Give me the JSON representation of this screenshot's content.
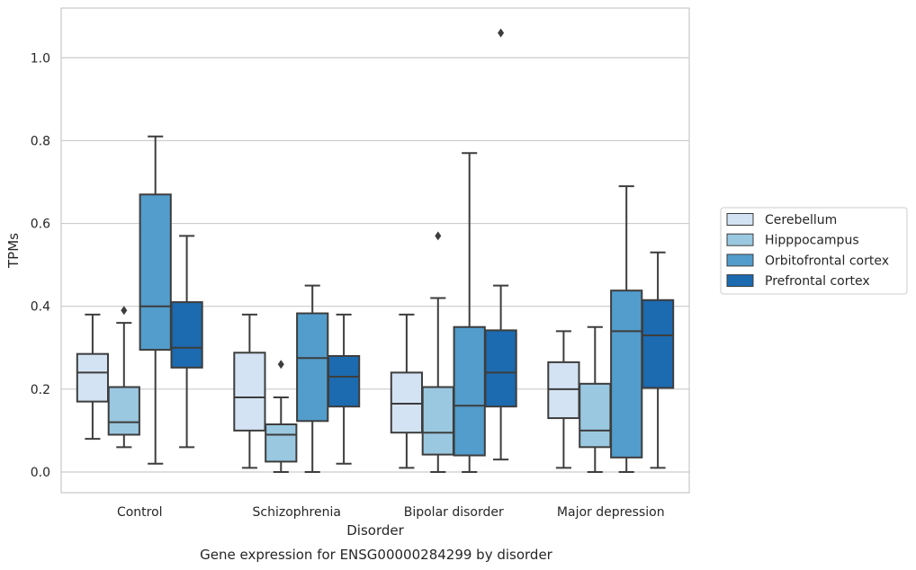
{
  "chart_data": {
    "type": "box",
    "title": "",
    "caption": "Gene expression for ENSG00000284299 by disorder",
    "xlabel": "Disorder",
    "ylabel": "TPMs",
    "ylim": [
      -0.05,
      1.12
    ],
    "yticks": [
      0.0,
      0.2,
      0.4,
      0.6,
      0.8,
      1.0
    ],
    "ytick_labels": [
      "0.0",
      "0.2",
      "0.4",
      "0.6",
      "0.8",
      "1.0"
    ],
    "grid": "horizontal",
    "legend": "right",
    "categories": [
      "Control",
      "Schizophrenia",
      "Bipolar disorder",
      "Major depression"
    ],
    "series": [
      {
        "name": "Cerebellum",
        "color": "#d3e3f3",
        "boxes": [
          {
            "whislo": 0.08,
            "q1": 0.17,
            "med": 0.24,
            "q3": 0.285,
            "whishi": 0.38,
            "fliers": []
          },
          {
            "whislo": 0.01,
            "q1": 0.1,
            "med": 0.18,
            "q3": 0.288,
            "whishi": 0.38,
            "fliers": []
          },
          {
            "whislo": 0.01,
            "q1": 0.095,
            "med": 0.165,
            "q3": 0.24,
            "whishi": 0.38,
            "fliers": []
          },
          {
            "whislo": 0.01,
            "q1": 0.13,
            "med": 0.2,
            "q3": 0.265,
            "whishi": 0.34,
            "fliers": []
          }
        ]
      },
      {
        "name": "Hipppocampus",
        "color": "#9ac8e0",
        "boxes": [
          {
            "whislo": 0.06,
            "q1": 0.09,
            "med": 0.12,
            "q3": 0.205,
            "whishi": 0.36,
            "fliers": [
              0.39
            ]
          },
          {
            "whislo": 0.0,
            "q1": 0.025,
            "med": 0.09,
            "q3": 0.115,
            "whishi": 0.18,
            "fliers": [
              0.26
            ]
          },
          {
            "whislo": 0.0,
            "q1": 0.042,
            "med": 0.095,
            "q3": 0.205,
            "whishi": 0.42,
            "fliers": [
              0.57
            ]
          },
          {
            "whislo": 0.0,
            "q1": 0.06,
            "med": 0.1,
            "q3": 0.213,
            "whishi": 0.35,
            "fliers": []
          }
        ]
      },
      {
        "name": "Orbitofrontal cortex",
        "color": "#529dcc",
        "boxes": [
          {
            "whislo": 0.02,
            "q1": 0.295,
            "med": 0.4,
            "q3": 0.67,
            "whishi": 0.81,
            "fliers": []
          },
          {
            "whislo": 0.0,
            "q1": 0.123,
            "med": 0.275,
            "q3": 0.383,
            "whishi": 0.45,
            "fliers": []
          },
          {
            "whislo": 0.0,
            "q1": 0.04,
            "med": 0.16,
            "q3": 0.35,
            "whishi": 0.77,
            "fliers": []
          },
          {
            "whislo": 0.0,
            "q1": 0.035,
            "med": 0.34,
            "q3": 0.438,
            "whishi": 0.69,
            "fliers": []
          }
        ]
      },
      {
        "name": "Prefrontal cortex",
        "color": "#1c6aaf",
        "boxes": [
          {
            "whislo": 0.06,
            "q1": 0.252,
            "med": 0.3,
            "q3": 0.41,
            "whishi": 0.57,
            "fliers": []
          },
          {
            "whislo": 0.02,
            "q1": 0.158,
            "med": 0.23,
            "q3": 0.28,
            "whishi": 0.38,
            "fliers": []
          },
          {
            "whislo": 0.03,
            "q1": 0.158,
            "med": 0.24,
            "q3": 0.342,
            "whishi": 0.45,
            "fliers": [
              1.06
            ]
          },
          {
            "whislo": 0.01,
            "q1": 0.203,
            "med": 0.33,
            "q3": 0.415,
            "whishi": 0.53,
            "fliers": []
          }
        ]
      }
    ]
  }
}
